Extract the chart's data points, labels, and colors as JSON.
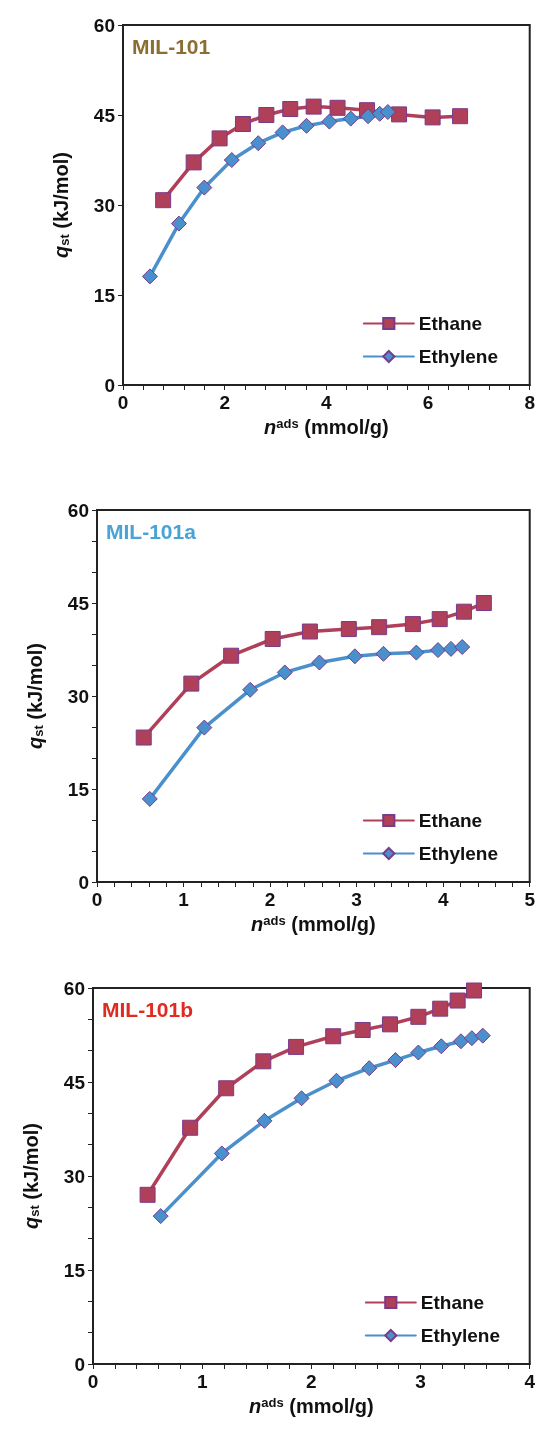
{
  "chart_data": [
    {
      "type": "line",
      "title": "MIL-101",
      "xlabel": "n$^{ads}$ (mmol/g)",
      "ylabel": "q$_{st}$ (kJ/mol)",
      "xlim": [
        0,
        8
      ],
      "xticks": [
        0,
        {
          "value": 0.4,
          "label": null
        },
        {
          "value": 0.8,
          "label": null
        },
        {
          "value": 1.2,
          "label": null
        },
        {
          "value": 1.6,
          "label": null
        },
        2,
        {
          "value": 2.4,
          "label": null
        },
        {
          "value": 2.8,
          "label": null
        },
        {
          "value": 3.2,
          "label": null
        },
        {
          "value": 3.6,
          "label": null
        },
        4,
        {
          "value": 4.4,
          "label": null
        },
        {
          "value": 4.8,
          "label": null
        },
        {
          "value": 5.2,
          "label": null
        },
        {
          "value": 5.6,
          "label": null
        },
        6,
        {
          "value": 6.4,
          "label": null
        },
        {
          "value": 6.8,
          "label": null
        },
        {
          "value": 7.2,
          "label": null
        },
        {
          "value": 7.6,
          "label": null
        },
        8
      ],
      "ylim": [
        0,
        60
      ],
      "yticks": [
        0,
        15,
        30,
        45,
        60
      ],
      "grid": false,
      "legend": "bottom right",
      "series": [
        {
          "name": "Ethane",
          "color": "#b0405a",
          "marker": "square",
          "x": [
            0.79,
            1.39,
            1.9,
            2.36,
            2.82,
            3.29,
            3.75,
            4.22,
            4.8,
            5.43,
            6.09,
            6.63
          ],
          "values": [
            30.8,
            37.1,
            41.1,
            43.5,
            45.0,
            46.0,
            46.4,
            46.2,
            45.8,
            45.1,
            44.6,
            44.8
          ]
        },
        {
          "name": "Ethylene",
          "color": "#4a90cc",
          "marker": "diamond",
          "x": [
            0.53,
            1.1,
            1.6,
            2.14,
            2.66,
            3.14,
            3.61,
            4.06,
            4.48,
            4.82,
            5.05,
            5.21
          ],
          "values": [
            18.1,
            26.9,
            32.9,
            37.5,
            40.3,
            42.1,
            43.2,
            43.9,
            44.4,
            44.8,
            45.2,
            45.5
          ]
        }
      ]
    },
    {
      "type": "line",
      "title": "MIL-101a",
      "xlabel": "n$^{ads}$ (mmol/g)",
      "ylabel": "q$_{st}$ (kJ/mol)",
      "xlim": [
        0,
        5
      ],
      "xticks": [
        0,
        {
          "value": 0.2,
          "label": null
        },
        {
          "value": 0.4,
          "label": null
        },
        {
          "value": 0.6,
          "label": null
        },
        {
          "value": 0.8,
          "label": null
        },
        1,
        {
          "value": 1.2,
          "label": null
        },
        {
          "value": 1.4,
          "label": null
        },
        {
          "value": 1.6,
          "label": null
        },
        {
          "value": 1.8,
          "label": null
        },
        2,
        {
          "value": 2.2,
          "label": null
        },
        {
          "value": 2.4,
          "label": null
        },
        {
          "value": 2.6,
          "label": null
        },
        {
          "value": 2.8,
          "label": null
        },
        3,
        {
          "value": 3.2,
          "label": null
        },
        {
          "value": 3.4,
          "label": null
        },
        {
          "value": 3.6,
          "label": null
        },
        {
          "value": 3.8,
          "label": null
        },
        4,
        {
          "value": 4.2,
          "label": null
        },
        {
          "value": 4.4,
          "label": null
        },
        {
          "value": 4.6,
          "label": null
        },
        {
          "value": 4.8,
          "label": null
        },
        5
      ],
      "ylim": [
        0,
        60
      ],
      "yticks": [
        0,
        {
          "value": 5,
          "label": null
        },
        {
          "value": 10,
          "label": null
        },
        15,
        {
          "value": 20,
          "label": null
        },
        {
          "value": 25,
          "label": null
        },
        30,
        {
          "value": 35,
          "label": null
        },
        {
          "value": 40,
          "label": null
        },
        45,
        {
          "value": 50,
          "label": null
        },
        {
          "value": 55,
          "label": null
        },
        60
      ],
      "grid": false,
      "legend": "bottom right",
      "series": [
        {
          "name": "Ethane",
          "color": "#b0405a",
          "marker": "square",
          "x": [
            0.54,
            1.09,
            1.55,
            2.03,
            2.46,
            2.91,
            3.26,
            3.65,
            3.96,
            4.24,
            4.47
          ],
          "values": [
            23.3,
            32.0,
            36.5,
            39.2,
            40.4,
            40.8,
            41.1,
            41.6,
            42.4,
            43.6,
            45.0
          ]
        },
        {
          "name": "Ethylene",
          "color": "#4a90cc",
          "marker": "diamond",
          "x": [
            0.61,
            1.24,
            1.77,
            2.17,
            2.57,
            2.98,
            3.31,
            3.69,
            3.94,
            4.09,
            4.22
          ],
          "values": [
            13.4,
            24.9,
            31.0,
            33.8,
            35.4,
            36.4,
            36.8,
            37.0,
            37.4,
            37.6,
            37.9
          ]
        }
      ]
    },
    {
      "type": "line",
      "title": "MIL-101b",
      "xlabel": "n$^{ads}$ (mmol/g)",
      "ylabel": "q$_{st}$ (kJ/mol)",
      "xlim": [
        0,
        4
      ],
      "xticks": [
        0,
        {
          "value": 0.2,
          "label": null
        },
        {
          "value": 0.4,
          "label": null
        },
        {
          "value": 0.6,
          "label": null
        },
        {
          "value": 0.8,
          "label": null
        },
        1,
        {
          "value": 1.2,
          "label": null
        },
        {
          "value": 1.4,
          "label": null
        },
        {
          "value": 1.6,
          "label": null
        },
        {
          "value": 1.8,
          "label": null
        },
        2,
        {
          "value": 2.2,
          "label": null
        },
        {
          "value": 2.4,
          "label": null
        },
        {
          "value": 2.6,
          "label": null
        },
        {
          "value": 2.8,
          "label": null
        },
        3,
        {
          "value": 3.2,
          "label": null
        },
        {
          "value": 3.4,
          "label": null
        },
        {
          "value": 3.6,
          "label": null
        },
        {
          "value": 3.8,
          "label": null
        },
        4
      ],
      "ylim": [
        0,
        60
      ],
      "yticks": [
        0,
        {
          "value": 5,
          "label": null
        },
        {
          "value": 10,
          "label": null
        },
        15,
        {
          "value": 20,
          "label": null
        },
        {
          "value": 25,
          "label": null
        },
        30,
        {
          "value": 35,
          "label": null
        },
        {
          "value": 40,
          "label": null
        },
        45,
        {
          "value": 50,
          "label": null
        },
        {
          "value": 55,
          "label": null
        },
        60
      ],
      "grid": false,
      "legend": "bottom right",
      "series": [
        {
          "name": "Ethane",
          "color": "#b0405a",
          "marker": "square",
          "x": [
            0.5,
            0.89,
            1.22,
            1.56,
            1.86,
            2.2,
            2.47,
            2.72,
            2.98,
            3.18,
            3.34,
            3.49
          ],
          "values": [
            27.0,
            37.7,
            44.0,
            48.3,
            50.6,
            52.3,
            53.3,
            54.2,
            55.4,
            56.7,
            58.0,
            59.6
          ]
        },
        {
          "name": "Ethylene",
          "color": "#4a90cc",
          "marker": "diamond",
          "x": [
            0.62,
            1.18,
            1.57,
            1.91,
            2.23,
            2.53,
            2.77,
            2.98,
            3.19,
            3.37,
            3.47,
            3.57
          ],
          "values": [
            23.6,
            33.6,
            38.8,
            42.4,
            45.2,
            47.2,
            48.5,
            49.7,
            50.7,
            51.5,
            52.0,
            52.4
          ]
        }
      ]
    }
  ]
}
